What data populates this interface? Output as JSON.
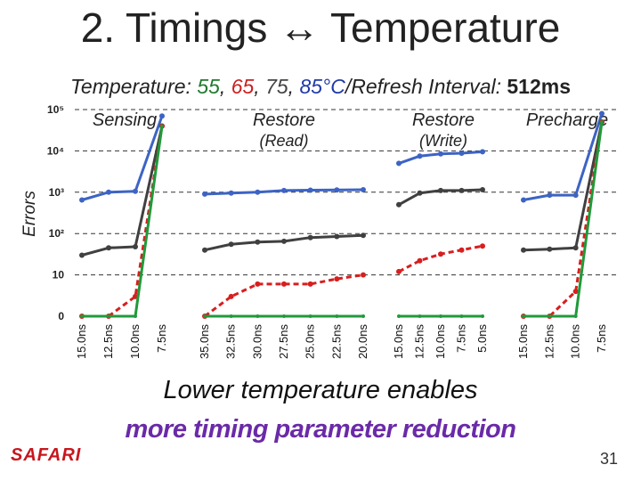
{
  "slide": {
    "title": "2. Timings ↔ Temperature",
    "subtitle_prefix": "Temperature: ",
    "temp_55": "55",
    "temp_65": "65",
    "temp_75": "75",
    "temp_85": "85",
    "temp_unit": "°C",
    "refresh_label": "/Refresh Interval: ",
    "refresh_value": "512ms",
    "caption_line1": "Lower temperature enables",
    "caption_line2": "more timing parameter reduction",
    "footer_logo": "SAFARI",
    "page_number": "31"
  },
  "colors": {
    "t55": "#1f9a3a",
    "t65": "#d81e1e",
    "t75": "#404040",
    "t85": "#3d64c4",
    "caption_highlight": "#6a2aa8",
    "logo": "#c8161d"
  },
  "chart_data": {
    "type": "line",
    "ylabel": "Errors",
    "yscale": "log",
    "y_ticks": [
      {
        "label": "0",
        "value": 0
      },
      {
        "label": "10",
        "value": 10
      },
      {
        "label": "10²",
        "value": 100
      },
      {
        "label": "10³",
        "value": 1000
      },
      {
        "label": "10⁴",
        "value": 10000
      },
      {
        "label": "10⁵",
        "value": 100000
      }
    ],
    "series_names": [
      "55°C",
      "65°C",
      "75°C",
      "85°C"
    ],
    "panels": [
      {
        "title": "Sensing",
        "subtitle": "",
        "categories": [
          "15.0ns",
          "12.5ns",
          "10.0ns",
          "7.5ns"
        ],
        "series": [
          {
            "name": "55°C",
            "values": [
              0,
              0,
              0,
              40000
            ]
          },
          {
            "name": "65°C",
            "values": [
              0,
              0,
              3,
              40000
            ]
          },
          {
            "name": "75°C",
            "values": [
              30,
              45,
              48,
              40000
            ]
          },
          {
            "name": "85°C",
            "values": [
              650,
              1000,
              1050,
              70000
            ]
          }
        ]
      },
      {
        "title": "Restore",
        "subtitle": "(Read)",
        "categories": [
          "35.0ns",
          "32.5ns",
          "30.0ns",
          "27.5ns",
          "25.0ns",
          "22.5ns",
          "20.0ns"
        ],
        "series": [
          {
            "name": "55°C",
            "values": [
              0,
              0,
              0,
              0,
              0,
              0,
              0
            ]
          },
          {
            "name": "65°C",
            "values": [
              0,
              3,
              6,
              6,
              6,
              8,
              10
            ]
          },
          {
            "name": "75°C",
            "values": [
              40,
              55,
              62,
              65,
              80,
              85,
              90
            ]
          },
          {
            "name": "85°C",
            "values": [
              900,
              950,
              1000,
              1100,
              1120,
              1130,
              1150
            ]
          }
        ]
      },
      {
        "title": "Restore",
        "subtitle": "(Write)",
        "categories": [
          "15.0ns",
          "12.5ns",
          "10.0ns",
          "7.5ns",
          "5.0ns"
        ],
        "series": [
          {
            "name": "55°C",
            "values": [
              0,
              0,
              0,
              0,
              0
            ]
          },
          {
            "name": "65°C",
            "values": [
              12,
              22,
              32,
              40,
              50
            ]
          },
          {
            "name": "75°C",
            "values": [
              500,
              950,
              1100,
              1100,
              1150
            ]
          },
          {
            "name": "85°C",
            "values": [
              5000,
              7500,
              8500,
              8800,
              9500
            ]
          }
        ]
      },
      {
        "title": "Precharge",
        "subtitle": "",
        "categories": [
          "15.0ns",
          "12.5ns",
          "10.0ns",
          "7.5ns"
        ],
        "series": [
          {
            "name": "55°C",
            "values": [
              0,
              0,
              0,
              50000
            ]
          },
          {
            "name": "65°C",
            "values": [
              0,
              0,
              4,
              50000
            ]
          },
          {
            "name": "75°C",
            "values": [
              40,
              42,
              45,
              50000
            ]
          },
          {
            "name": "85°C",
            "values": [
              650,
              850,
              850,
              80000
            ]
          }
        ]
      }
    ]
  }
}
